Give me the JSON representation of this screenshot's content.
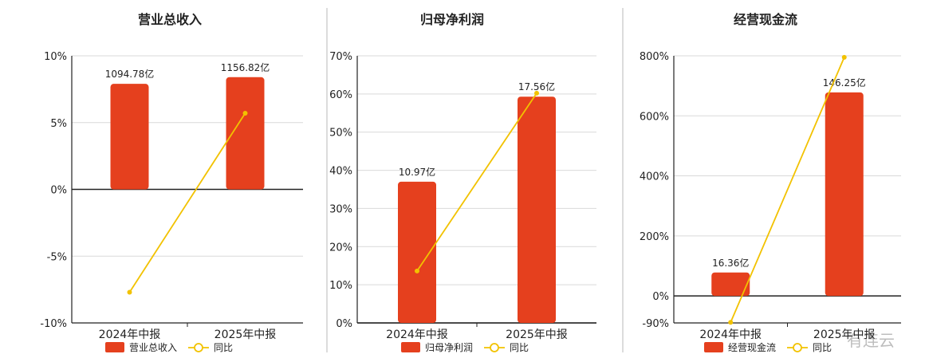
{
  "colors": {
    "bar": "#e5401e",
    "line": "#f2c200",
    "grid": "#d9d9d9",
    "axis": "#222222",
    "divider": "#d0d0d0",
    "text": "#222222"
  },
  "watermark": "有连云",
  "chart_data": [
    {
      "type": "bar",
      "title": "营业总收入",
      "categories": [
        "2024年中报",
        "2025年中报"
      ],
      "y_ticks": [
        "10%",
        "5%",
        "0%",
        "-5%",
        "-10%"
      ],
      "ylim": [
        -10,
        10
      ],
      "series": [
        {
          "name": "营业总收入",
          "kind": "bar",
          "values": [
            7.9,
            8.4
          ],
          "labels": [
            "1094.78亿",
            "1156.82亿"
          ]
        },
        {
          "name": "同比",
          "kind": "line",
          "values": [
            -7.7,
            5.7
          ]
        }
      ],
      "legend": "bottom-center",
      "grid": true
    },
    {
      "type": "bar",
      "title": "归母净利润",
      "categories": [
        "2024年中报",
        "2025年中报"
      ],
      "y_ticks": [
        "70%",
        "60%",
        "50%",
        "40%",
        "30%",
        "20%",
        "10%",
        "0%"
      ],
      "ylim": [
        0,
        70
      ],
      "series": [
        {
          "name": "归母净利润",
          "kind": "bar",
          "values": [
            37,
            59.3
          ],
          "labels": [
            "10.97亿",
            "17.56亿"
          ]
        },
        {
          "name": "同比",
          "kind": "line",
          "values": [
            13.6,
            60.2
          ]
        }
      ],
      "legend": "bottom-center",
      "grid": true
    },
    {
      "type": "bar",
      "title": "经营现金流",
      "categories": [
        "2024年中报",
        "2025年中报"
      ],
      "y_ticks": [
        "800%",
        "600%",
        "400%",
        "200%",
        "0%",
        "-90%"
      ],
      "ylim": [
        -90,
        800
      ],
      "series": [
        {
          "name": "经营现金流",
          "kind": "bar",
          "values": [
            78,
            678
          ],
          "labels": [
            "16.36亿",
            "146.25亿"
          ]
        },
        {
          "name": "同比",
          "kind": "line",
          "values": [
            -88,
            795
          ]
        }
      ],
      "legend": "bottom-center",
      "grid": true
    }
  ]
}
